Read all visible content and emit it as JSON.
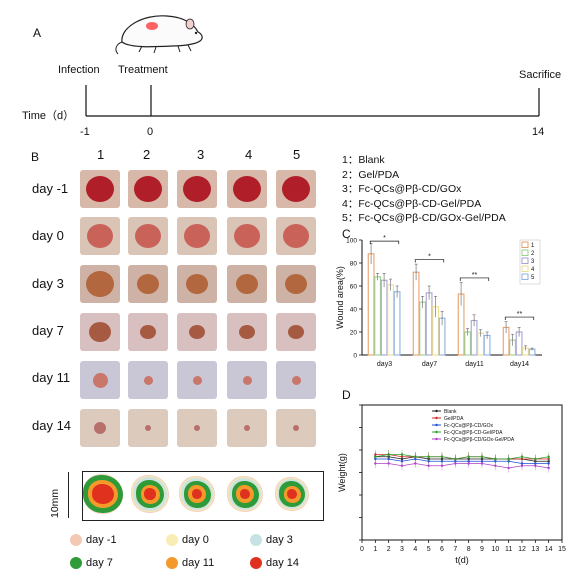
{
  "panel_a": {
    "letter": "A",
    "infection": "Infection",
    "treatment": "Treatment",
    "sacrifice": "Sacrifice",
    "time_label": "Time（d）",
    "ticks": [
      "-1",
      "0",
      "14"
    ]
  },
  "panel_b": {
    "letter": "B",
    "columns": [
      "1",
      "2",
      "3",
      "4",
      "5"
    ],
    "rows": [
      "day -1",
      "day 0",
      "day 3",
      "day 7",
      "day 11",
      "day 14"
    ],
    "scale": "10mm",
    "overlay_legend": [
      {
        "label": "day -1",
        "color": "#f4c9b4"
      },
      {
        "label": "day 0",
        "color": "#f7edb5"
      },
      {
        "label": "day 3",
        "color": "#c7e2e4"
      },
      {
        "label": "day 7",
        "color": "#2f9a38"
      },
      {
        "label": "day 11",
        "color": "#f39a2a"
      },
      {
        "label": "day 14",
        "color": "#e0301e"
      }
    ]
  },
  "groups_legend": [
    "1：Blank",
    "2：Gel/PDA",
    "3：Fc-QCs@Pβ-CD/GOx",
    "4：Fc-QCs@Pβ-CD-Gel/PDA",
    "5：Fc-QCs@Pβ-CD/GOx-Gel/PDA"
  ],
  "panel_c": {
    "letter": "C",
    "chart_data": {
      "type": "bar",
      "categories": [
        "day3",
        "day7",
        "day11",
        "day14"
      ],
      "ylabel": "Wound area(%)",
      "ylim": [
        0,
        100
      ],
      "yticks": [
        "0",
        "20",
        "40",
        "60",
        "80",
        "100"
      ],
      "legend": [
        "1",
        "2",
        "3",
        "4",
        "5"
      ],
      "legend_position": "top-right",
      "colors": [
        "#e8a06a",
        "#9ccf8b",
        "#a7a3cf",
        "#ecdf8f",
        "#8fb0e0"
      ],
      "series": [
        {
          "name": "1",
          "values": [
            88,
            72,
            53,
            24
          ],
          "errors": [
            9,
            7,
            10,
            5
          ]
        },
        {
          "name": "2",
          "values": [
            68,
            46,
            20,
            13
          ],
          "errors": [
            3,
            5,
            3,
            5
          ]
        },
        {
          "name": "3",
          "values": [
            65,
            54,
            30,
            20
          ],
          "errors": [
            6,
            6,
            5,
            4
          ]
        },
        {
          "name": "4",
          "values": [
            61,
            42,
            19,
            6
          ],
          "errors": [
            5,
            9,
            3,
            2
          ]
        },
        {
          "name": "5",
          "values": [
            55,
            32,
            17,
            5
          ],
          "errors": [
            5,
            6,
            3,
            1
          ]
        }
      ],
      "annotations": [
        "*",
        "*",
        "**",
        "**"
      ]
    }
  },
  "panel_d": {
    "letter": "D",
    "chart_data": {
      "type": "line",
      "x": [
        1,
        2,
        3,
        4,
        5,
        6,
        7,
        8,
        9,
        10,
        11,
        12,
        13,
        14
      ],
      "xticks": [
        "0",
        "1",
        "2",
        "3",
        "4",
        "5",
        "6",
        "7",
        "8",
        "9",
        "10",
        "11",
        "12",
        "13",
        "14",
        "15"
      ],
      "xlabel": "t(d)",
      "ylabel": "Weight(g)",
      "ylim": [
        0,
        60
      ],
      "xlim": [
        0,
        15
      ],
      "legend_position": "top",
      "series": [
        {
          "name": "Blank",
          "color": "#222222",
          "values": [
            37,
            37,
            36,
            37,
            36,
            36,
            36,
            36,
            36,
            36,
            36,
            36,
            35,
            35
          ]
        },
        {
          "name": "Gel/PDA",
          "color": "#d62728",
          "values": [
            38,
            38,
            37,
            37,
            37,
            37,
            36,
            37,
            37,
            36,
            36,
            36,
            36,
            36
          ]
        },
        {
          "name": "Fc-QCs@Pβ-CD/GOx",
          "color": "#1f4fd1",
          "values": [
            36,
            36,
            35,
            36,
            35,
            35,
            35,
            35,
            35,
            35,
            35,
            34,
            34,
            34
          ]
        },
        {
          "name": "Fc-QCs@Pβ-CD-Gel/PDA",
          "color": "#2ca02c",
          "values": [
            37,
            38,
            38,
            37,
            37,
            37,
            36,
            37,
            37,
            36,
            36,
            37,
            36,
            37
          ]
        },
        {
          "name": "Fc-QCs@Pβ-CD/GOx-Gel/PDA",
          "color": "#b042c8",
          "values": [
            34,
            34,
            33,
            34,
            33,
            33,
            34,
            34,
            34,
            33,
            32,
            33,
            33,
            32
          ]
        }
      ]
    }
  }
}
